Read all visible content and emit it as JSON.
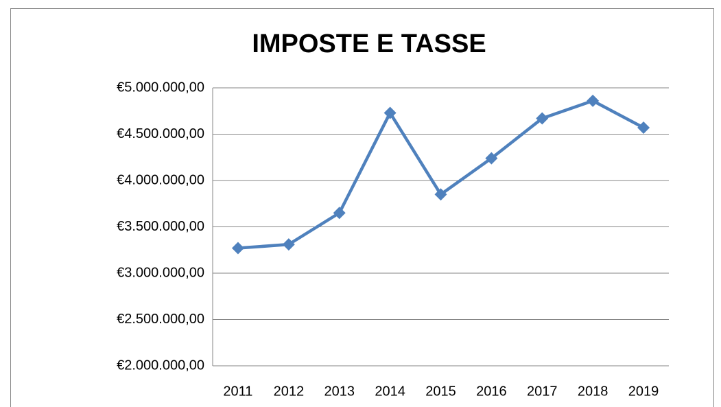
{
  "chart_data": {
    "type": "line",
    "title": "IMPOSTE E TASSE",
    "categories": [
      "2011",
      "2012",
      "2013",
      "2014",
      "2015",
      "2016",
      "2017",
      "2018",
      "2019"
    ],
    "series": [
      {
        "name": "Imposte e tasse",
        "color": "#4f81bd",
        "values": [
          3270000,
          3310000,
          3650000,
          4730000,
          3850000,
          4240000,
          4670000,
          4860000,
          4570000
        ]
      }
    ],
    "ylim": [
      2000000,
      5000000
    ],
    "yticks": [
      {
        "value": 2000000,
        "label": "€2.000.000,00"
      },
      {
        "value": 2500000,
        "label": "€2.500.000,00"
      },
      {
        "value": 3000000,
        "label": "€3.000.000,00"
      },
      {
        "value": 3500000,
        "label": "€3.500.000,00"
      },
      {
        "value": 4000000,
        "label": "€4.000.000,00"
      },
      {
        "value": 4500000,
        "label": "€4.500.000,00"
      },
      {
        "value": 5000000,
        "label": "€5.000.000,00"
      }
    ],
    "grid": true
  }
}
